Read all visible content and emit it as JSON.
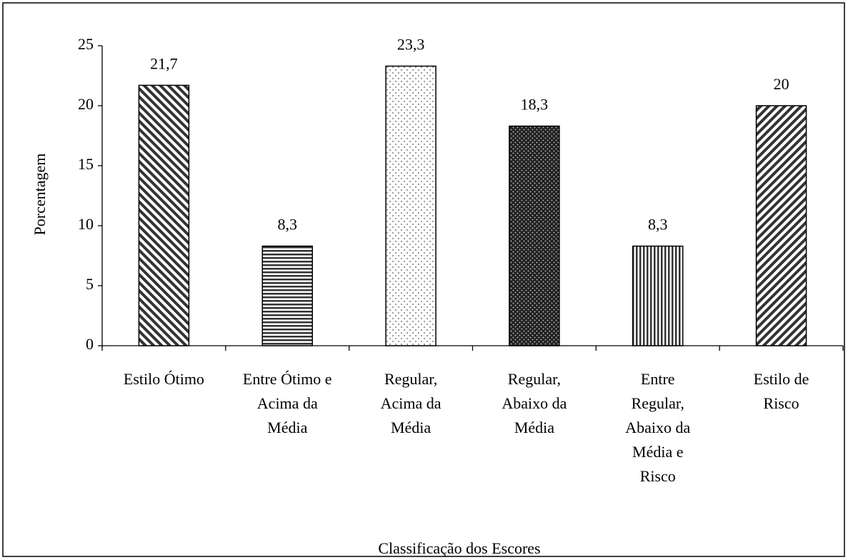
{
  "chart_data": {
    "type": "bar",
    "categories": [
      [
        "Estilo Ótimo"
      ],
      [
        "Entre Ótimo e",
        "Acima da",
        "Média"
      ],
      [
        "Regular,",
        "Acima da",
        "Média"
      ],
      [
        "Regular,",
        "Abaixo da",
        "Média"
      ],
      [
        "Entre",
        "Regular,",
        "Abaixo da",
        "Média e",
        "Risco"
      ],
      [
        "Estilo de",
        "Risco"
      ]
    ],
    "values": [
      21.7,
      8.3,
      23.3,
      18.3,
      8.3,
      20
    ],
    "value_labels": [
      "21,7",
      "8,3",
      "23,3",
      "18,3",
      "8,3",
      "20"
    ],
    "x_label": "Classificação dos Escores",
    "y_label": "Porcentagem",
    "ylim": [
      0,
      25
    ],
    "yticks": [
      0,
      5,
      10,
      15,
      20,
      25
    ],
    "grid": false
  }
}
